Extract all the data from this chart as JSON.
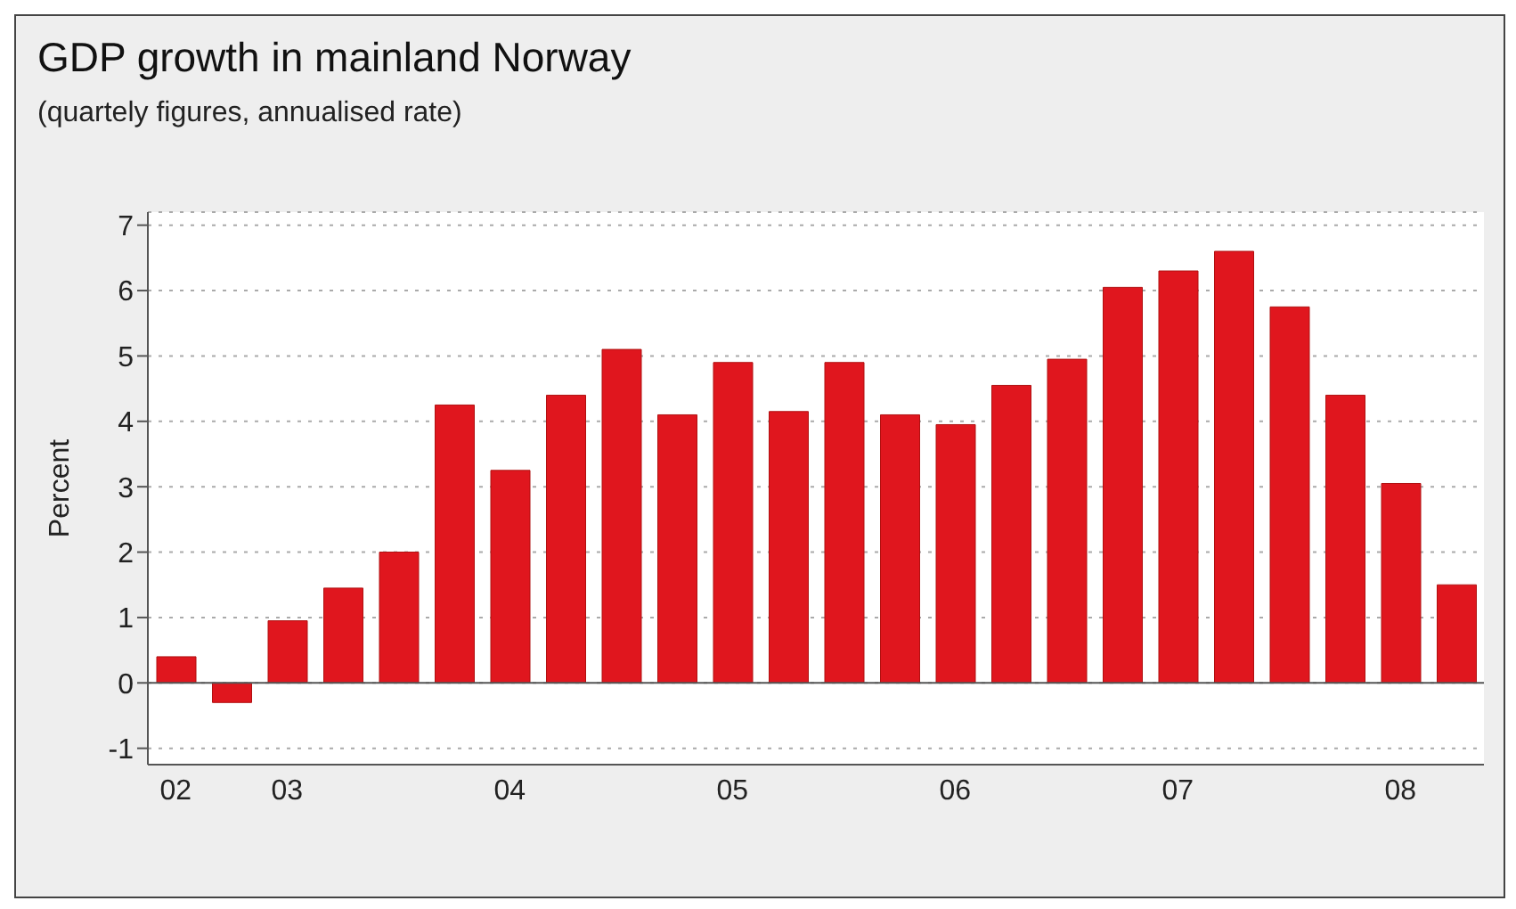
{
  "chart_data": {
    "type": "bar",
    "title": "GDP growth in mainland Norway",
    "subtitle": "(quartely figures, annualised rate)",
    "ylabel": "Percent",
    "categories": [
      "02",
      null,
      "03",
      null,
      null,
      null,
      "04",
      null,
      null,
      null,
      "05",
      null,
      null,
      null,
      "06",
      null,
      null,
      null,
      "07",
      null,
      null,
      null,
      "08",
      null
    ],
    "values": [
      0.4,
      -0.3,
      0.95,
      1.45,
      2.0,
      4.25,
      3.25,
      4.4,
      5.1,
      4.1,
      4.9,
      4.15,
      4.9,
      4.1,
      3.95,
      4.55,
      4.95,
      6.05,
      6.3,
      6.6,
      5.75,
      4.4,
      3.05,
      1.5
    ],
    "color": "#e0161e",
    "ylim": [
      -1.25,
      7.2
    ],
    "yticks": [
      -1,
      0,
      1,
      2,
      3,
      4,
      5,
      6,
      7
    ],
    "grid": "y"
  }
}
